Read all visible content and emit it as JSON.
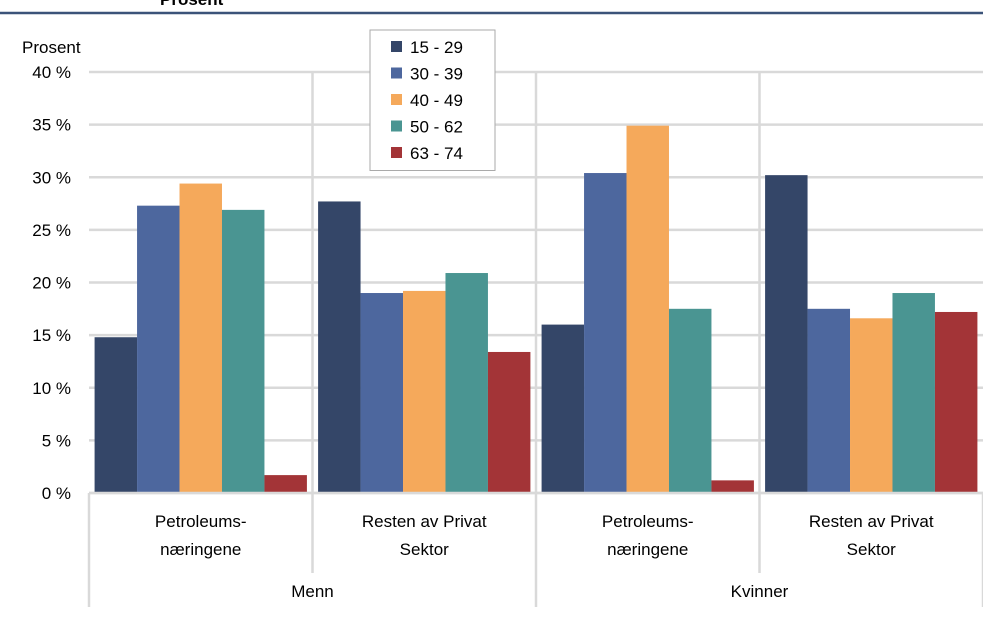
{
  "header_text": "Prosent",
  "chart_data": {
    "type": "bar",
    "ylabel": "Prosent",
    "ylim": [
      0,
      40
    ],
    "yticks": [
      "0 %",
      "5 %",
      "10 %",
      "15 %",
      "20 %",
      "25 %",
      "30 %",
      "35 %",
      "40 %"
    ],
    "categories": [
      {
        "label_lines": [
          "Petroleums-",
          "næringene"
        ],
        "group": "Menn"
      },
      {
        "label_lines": [
          "Resten av Privat",
          "Sektor"
        ],
        "group": "Menn"
      },
      {
        "label_lines": [
          "Petroleums-",
          "næringene"
        ],
        "group": "Kvinner"
      },
      {
        "label_lines": [
          "Resten av Privat",
          "Sektor"
        ],
        "group": "Kvinner"
      }
    ],
    "groups": [
      "Menn",
      "Kvinner"
    ],
    "series": [
      {
        "name": "15 - 29",
        "color": "#344668",
        "values": [
          14.8,
          27.7,
          16.0,
          30.2
        ]
      },
      {
        "name": "30 - 39",
        "color": "#4D679E",
        "values": [
          27.3,
          19.0,
          30.4,
          17.5
        ]
      },
      {
        "name": "40 - 49",
        "color": "#F5A95B",
        "values": [
          29.4,
          19.2,
          34.9,
          16.6
        ]
      },
      {
        "name": "50 - 62",
        "color": "#4A9592",
        "values": [
          26.9,
          20.9,
          17.5,
          19.0
        ]
      },
      {
        "name": "63 - 74",
        "color": "#A33437",
        "values": [
          1.7,
          13.4,
          1.2,
          17.2
        ]
      }
    ],
    "grid": true,
    "legend_position": "top-center"
  }
}
